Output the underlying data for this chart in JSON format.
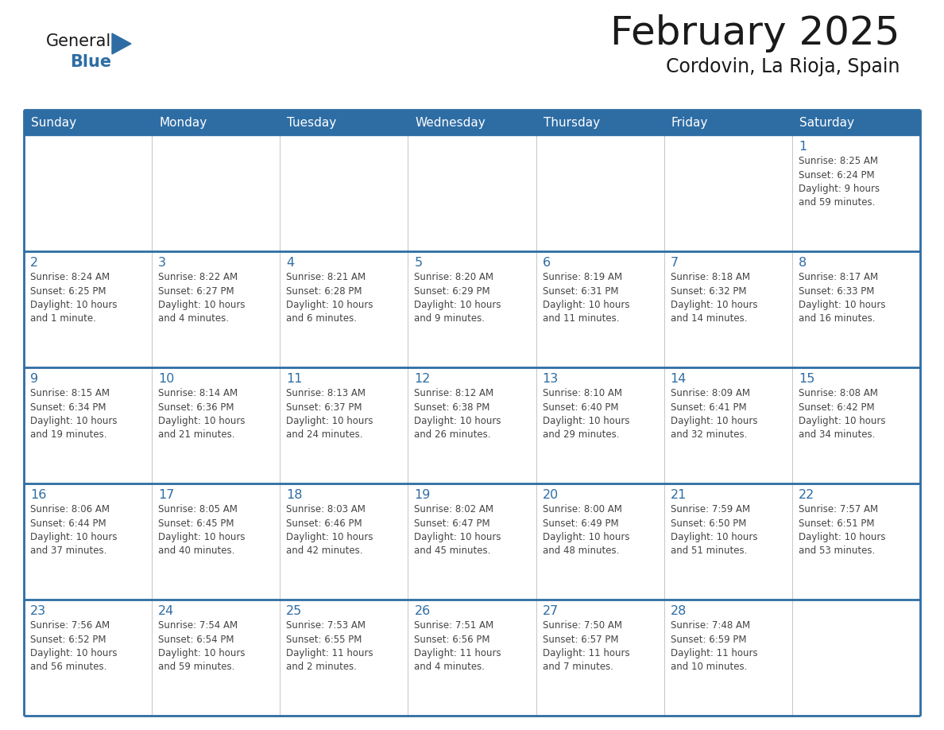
{
  "title": "February 2025",
  "subtitle": "Cordovin, La Rioja, Spain",
  "days_of_week": [
    "Sunday",
    "Monday",
    "Tuesday",
    "Wednesday",
    "Thursday",
    "Friday",
    "Saturday"
  ],
  "header_bg": "#2E6DA4",
  "header_text": "#FFFFFF",
  "border_color": "#2E6DA4",
  "day_number_color": "#2E6DA4",
  "cell_text_color": "#444444",
  "title_color": "#1a1a1a",
  "subtitle_color": "#1a1a1a",
  "logo_general_color": "#1a1a1a",
  "logo_blue_color": "#2E6DA4",
  "calendar_data": [
    [
      {
        "day": null,
        "info": ""
      },
      {
        "day": null,
        "info": ""
      },
      {
        "day": null,
        "info": ""
      },
      {
        "day": null,
        "info": ""
      },
      {
        "day": null,
        "info": ""
      },
      {
        "day": null,
        "info": ""
      },
      {
        "day": 1,
        "info": "Sunrise: 8:25 AM\nSunset: 6:24 PM\nDaylight: 9 hours\nand 59 minutes."
      }
    ],
    [
      {
        "day": 2,
        "info": "Sunrise: 8:24 AM\nSunset: 6:25 PM\nDaylight: 10 hours\nand 1 minute."
      },
      {
        "day": 3,
        "info": "Sunrise: 8:22 AM\nSunset: 6:27 PM\nDaylight: 10 hours\nand 4 minutes."
      },
      {
        "day": 4,
        "info": "Sunrise: 8:21 AM\nSunset: 6:28 PM\nDaylight: 10 hours\nand 6 minutes."
      },
      {
        "day": 5,
        "info": "Sunrise: 8:20 AM\nSunset: 6:29 PM\nDaylight: 10 hours\nand 9 minutes."
      },
      {
        "day": 6,
        "info": "Sunrise: 8:19 AM\nSunset: 6:31 PM\nDaylight: 10 hours\nand 11 minutes."
      },
      {
        "day": 7,
        "info": "Sunrise: 8:18 AM\nSunset: 6:32 PM\nDaylight: 10 hours\nand 14 minutes."
      },
      {
        "day": 8,
        "info": "Sunrise: 8:17 AM\nSunset: 6:33 PM\nDaylight: 10 hours\nand 16 minutes."
      }
    ],
    [
      {
        "day": 9,
        "info": "Sunrise: 8:15 AM\nSunset: 6:34 PM\nDaylight: 10 hours\nand 19 minutes."
      },
      {
        "day": 10,
        "info": "Sunrise: 8:14 AM\nSunset: 6:36 PM\nDaylight: 10 hours\nand 21 minutes."
      },
      {
        "day": 11,
        "info": "Sunrise: 8:13 AM\nSunset: 6:37 PM\nDaylight: 10 hours\nand 24 minutes."
      },
      {
        "day": 12,
        "info": "Sunrise: 8:12 AM\nSunset: 6:38 PM\nDaylight: 10 hours\nand 26 minutes."
      },
      {
        "day": 13,
        "info": "Sunrise: 8:10 AM\nSunset: 6:40 PM\nDaylight: 10 hours\nand 29 minutes."
      },
      {
        "day": 14,
        "info": "Sunrise: 8:09 AM\nSunset: 6:41 PM\nDaylight: 10 hours\nand 32 minutes."
      },
      {
        "day": 15,
        "info": "Sunrise: 8:08 AM\nSunset: 6:42 PM\nDaylight: 10 hours\nand 34 minutes."
      }
    ],
    [
      {
        "day": 16,
        "info": "Sunrise: 8:06 AM\nSunset: 6:44 PM\nDaylight: 10 hours\nand 37 minutes."
      },
      {
        "day": 17,
        "info": "Sunrise: 8:05 AM\nSunset: 6:45 PM\nDaylight: 10 hours\nand 40 minutes."
      },
      {
        "day": 18,
        "info": "Sunrise: 8:03 AM\nSunset: 6:46 PM\nDaylight: 10 hours\nand 42 minutes."
      },
      {
        "day": 19,
        "info": "Sunrise: 8:02 AM\nSunset: 6:47 PM\nDaylight: 10 hours\nand 45 minutes."
      },
      {
        "day": 20,
        "info": "Sunrise: 8:00 AM\nSunset: 6:49 PM\nDaylight: 10 hours\nand 48 minutes."
      },
      {
        "day": 21,
        "info": "Sunrise: 7:59 AM\nSunset: 6:50 PM\nDaylight: 10 hours\nand 51 minutes."
      },
      {
        "day": 22,
        "info": "Sunrise: 7:57 AM\nSunset: 6:51 PM\nDaylight: 10 hours\nand 53 minutes."
      }
    ],
    [
      {
        "day": 23,
        "info": "Sunrise: 7:56 AM\nSunset: 6:52 PM\nDaylight: 10 hours\nand 56 minutes."
      },
      {
        "day": 24,
        "info": "Sunrise: 7:54 AM\nSunset: 6:54 PM\nDaylight: 10 hours\nand 59 minutes."
      },
      {
        "day": 25,
        "info": "Sunrise: 7:53 AM\nSunset: 6:55 PM\nDaylight: 11 hours\nand 2 minutes."
      },
      {
        "day": 26,
        "info": "Sunrise: 7:51 AM\nSunset: 6:56 PM\nDaylight: 11 hours\nand 4 minutes."
      },
      {
        "day": 27,
        "info": "Sunrise: 7:50 AM\nSunset: 6:57 PM\nDaylight: 11 hours\nand 7 minutes."
      },
      {
        "day": 28,
        "info": "Sunrise: 7:48 AM\nSunset: 6:59 PM\nDaylight: 11 hours\nand 10 minutes."
      },
      {
        "day": null,
        "info": ""
      }
    ]
  ]
}
